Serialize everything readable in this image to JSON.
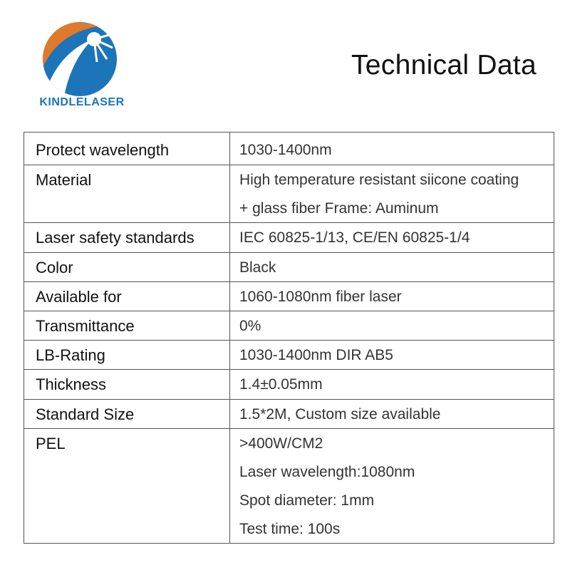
{
  "header": {
    "brand": "KINDLELASER",
    "title": "Technical Data"
  },
  "table": {
    "rows": [
      {
        "label": "Protect wavelength",
        "lines": [
          "1030-1400nm"
        ]
      },
      {
        "label": "Material",
        "lines": [
          "High temperature resistant siicone coating",
          "+ glass fiber Frame: Auminum"
        ]
      },
      {
        "label": "Laser safety standards",
        "lines": [
          "IEC 60825-1/13, CE/EN 60825-1/4"
        ]
      },
      {
        "label": "Color",
        "lines": [
          "Black"
        ]
      },
      {
        "label": "Available for",
        "lines": [
          "1060-1080nm fiber laser"
        ]
      },
      {
        "label": "Transmittance",
        "lines": [
          "0%"
        ]
      },
      {
        "label": "LB-Rating",
        "lines": [
          "1030-1400nm DIR AB5"
        ]
      },
      {
        "label": "Thickness",
        "lines": [
          "1.4±0.05mm"
        ]
      },
      {
        "label": "Standard Size",
        "lines": [
          "1.5*2M, Custom size available"
        ]
      },
      {
        "label": "PEL",
        "lines": [
          ">400W/CM2",
          "Laser wavelength:1080nm",
          "Spot diameter: 1mm",
          "Test time: 100s"
        ]
      }
    ]
  }
}
